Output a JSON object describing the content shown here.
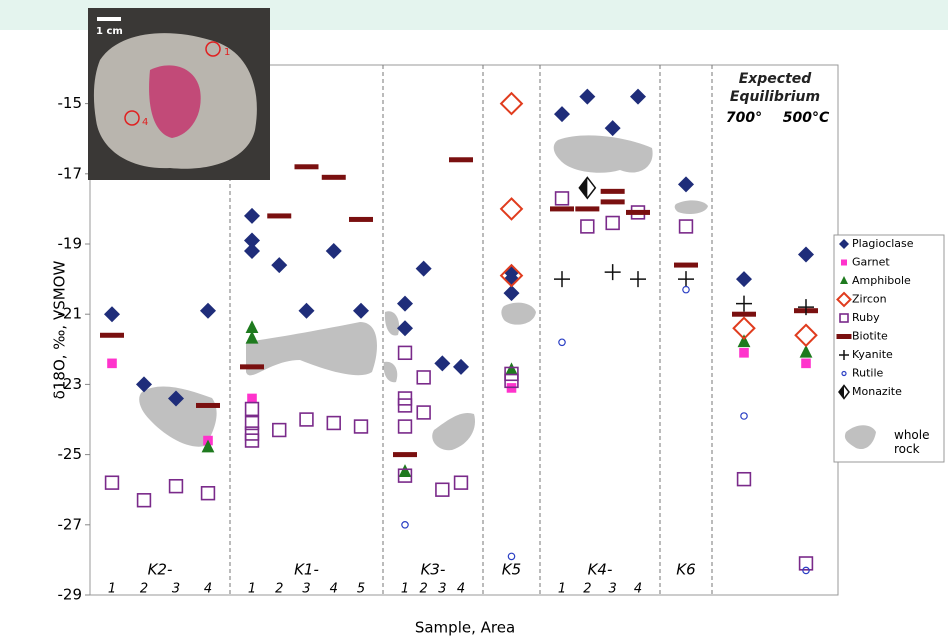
{
  "chart_data": {
    "type": "scatter",
    "ylabel": "δ18O, ‰, VSMOW",
    "xlabel": "Sample, Area",
    "ylim": [
      -29,
      -13.9
    ],
    "yticks": [
      -29,
      -27,
      -25,
      -23,
      -21,
      -19,
      -17,
      -15
    ],
    "photo_scale": "1 cm",
    "photo_labels": [
      "1",
      "4"
    ],
    "groups": [
      {
        "name": "K2-",
        "categories": [
          "1",
          "2",
          "3",
          "4"
        ]
      },
      {
        "name": "K1-",
        "categories": [
          "1",
          "2",
          "3",
          "4",
          "5"
        ]
      },
      {
        "name": "K3-",
        "categories": [
          "1",
          "2",
          "3",
          "4"
        ]
      },
      {
        "name": "K5",
        "categories": [
          null
        ]
      },
      {
        "name": "K4-",
        "categories": [
          "1",
          "2",
          "3",
          "4"
        ]
      },
      {
        "name": "K6",
        "categories": [
          null
        ]
      },
      {
        "name": "Expected Equilibrium",
        "categories": [
          "700°",
          "500°C"
        ]
      }
    ],
    "whole_rock_label": "whole rock",
    "series": [
      {
        "name": "Plagioclase",
        "marker": "diamond",
        "color": "#1f2d7a",
        "values": [
          [
            -21.0
          ],
          [
            -23.0
          ],
          [
            -23.4
          ],
          [
            -20.9
          ],
          [
            -18.2,
            -18.9,
            -19.2
          ],
          [
            -19.6
          ],
          [
            -20.9
          ],
          [
            -19.2
          ],
          [
            -20.9
          ],
          [
            -20.7,
            -21.4
          ],
          [
            -19.7
          ],
          [
            -22.4
          ],
          [
            -22.5
          ],
          [
            -19.8,
            -20.0,
            -20.4
          ],
          [
            -15.3
          ],
          [
            -14.8
          ],
          [
            -15.7
          ],
          [
            -14.8
          ],
          [
            -17.3
          ],
          [
            -20.0
          ],
          [
            -19.3
          ]
        ]
      },
      {
        "name": "Garnet",
        "marker": "square",
        "color": "#ff33cc",
        "values": [
          [
            -22.4
          ],
          null,
          null,
          [
            -24.6
          ],
          [
            -23.4
          ],
          null,
          null,
          null,
          null,
          null,
          null,
          null,
          null,
          [
            -23.1
          ],
          null,
          null,
          null,
          null,
          null,
          [
            -22.1
          ],
          [
            -22.4
          ]
        ]
      },
      {
        "name": "Amphibole",
        "marker": "triangle",
        "color": "#1e7a1e",
        "values": [
          null,
          null,
          null,
          [
            -24.8
          ],
          [
            -21.4,
            -21.7
          ],
          null,
          null,
          null,
          null,
          [
            -25.5
          ],
          null,
          null,
          null,
          [
            -22.6
          ],
          null,
          null,
          null,
          null,
          null,
          [
            -21.8
          ],
          [
            -22.1
          ]
        ]
      },
      {
        "name": "Zircon",
        "marker": "open-diamond",
        "color": "#e03c1e",
        "values": [
          null,
          null,
          null,
          null,
          null,
          null,
          null,
          null,
          null,
          null,
          null,
          null,
          null,
          [
            -15.0,
            -18.0,
            -19.9
          ],
          null,
          null,
          null,
          null,
          null,
          [
            -21.4
          ],
          [
            -21.6
          ]
        ]
      },
      {
        "name": "Ruby",
        "marker": "open-square",
        "color": "#7a2a8a",
        "values": [
          [
            -25.8
          ],
          [
            -26.3
          ],
          [
            -25.9
          ],
          [
            -26.1
          ],
          [
            -23.7,
            -24.1,
            -24.4,
            -24.6
          ],
          [
            -24.3
          ],
          [
            -24.0
          ],
          [
            -24.1
          ],
          [
            -24.2
          ],
          [
            -22.1,
            -23.4,
            -23.6,
            -24.2,
            -25.6
          ],
          [
            -22.8,
            -23.8
          ],
          [
            -26.0
          ],
          [
            -25.8
          ],
          [
            -22.7,
            -22.9
          ],
          [
            -17.7
          ],
          [
            -18.5
          ],
          [
            -18.4
          ],
          [
            -18.1
          ],
          [
            -18.5
          ],
          [
            -25.7
          ],
          [
            -28.1
          ]
        ]
      },
      {
        "name": "Biotite",
        "marker": "dash",
        "color": "#7a1010",
        "values": [
          [
            -21.6
          ],
          null,
          null,
          [
            -23.6
          ],
          [
            -22.5
          ],
          [
            -18.2
          ],
          [
            -16.8
          ],
          [
            -17.1
          ],
          [
            -18.3
          ],
          [
            -25.0
          ],
          null,
          null,
          [
            -16.6
          ],
          null,
          [
            -18.0
          ],
          [
            -18.0
          ],
          [
            -17.5,
            -17.8
          ],
          [
            -18.1
          ],
          [
            -19.6
          ],
          [
            -21.0
          ],
          [
            -20.9
          ]
        ]
      },
      {
        "name": "Kyanite",
        "marker": "plus",
        "color": "#111111",
        "values": [
          null,
          null,
          null,
          null,
          null,
          null,
          null,
          null,
          null,
          null,
          null,
          null,
          null,
          null,
          [
            -20.0
          ],
          null,
          [
            -19.8
          ],
          [
            -20.0
          ],
          [
            -20.0
          ],
          [
            -20.7
          ],
          [
            -20.8
          ]
        ]
      },
      {
        "name": "Rutile",
        "marker": "circle",
        "color": "#2b3fc4",
        "values": [
          null,
          null,
          null,
          null,
          null,
          null,
          null,
          null,
          null,
          [
            -27.0
          ],
          null,
          null,
          null,
          [
            -27.9
          ],
          [
            -21.8
          ],
          null,
          null,
          null,
          [
            -20.3
          ],
          [
            -23.9
          ],
          [
            -28.3
          ]
        ]
      },
      {
        "name": "Monazite",
        "marker": "half-diamond",
        "color": "#111111",
        "values": [
          null,
          null,
          null,
          null,
          null,
          null,
          null,
          null,
          null,
          null,
          null,
          null,
          null,
          null,
          null,
          [
            -17.4
          ],
          null,
          null,
          null,
          null,
          null
        ]
      }
    ]
  }
}
